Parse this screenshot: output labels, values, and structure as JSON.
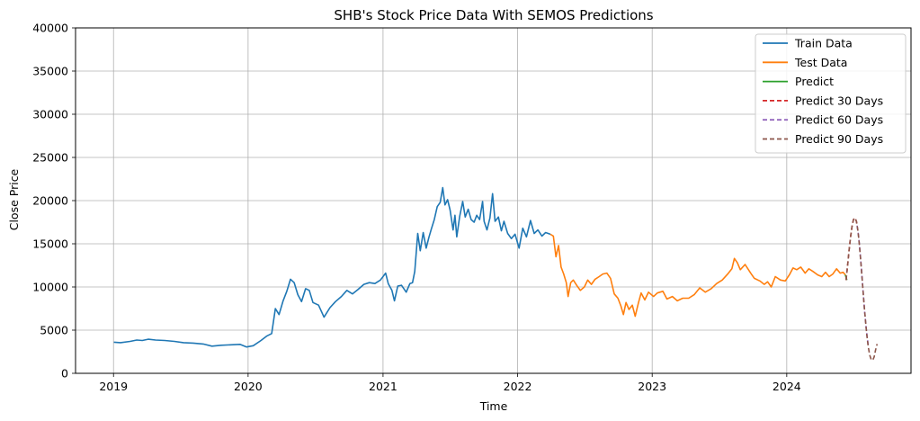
{
  "chart_data": {
    "type": "line",
    "title": "SHB's Stock Price Data With SEMOS Predictions",
    "xlabel": "Time",
    "ylabel": "Close Price",
    "xlim": [
      "2018-09-20",
      "2024-12-03"
    ],
    "ylim": [
      0,
      40000
    ],
    "x_ticks": [
      "2019",
      "2020",
      "2021",
      "2022",
      "2023",
      "2024"
    ],
    "y_ticks": [
      0,
      5000,
      10000,
      15000,
      20000,
      25000,
      30000,
      35000,
      40000
    ],
    "grid": true,
    "legend_position": "top-right",
    "series": [
      {
        "name": "Train Data",
        "color": "#1f77b4",
        "style": "solid",
        "points": [
          [
            "2019-01-02",
            3600
          ],
          [
            "2019-01-20",
            3550
          ],
          [
            "2019-02-15",
            3700
          ],
          [
            "2019-03-05",
            3850
          ],
          [
            "2019-03-20",
            3800
          ],
          [
            "2019-04-05",
            3950
          ],
          [
            "2019-04-25",
            3850
          ],
          [
            "2019-05-20",
            3800
          ],
          [
            "2019-06-15",
            3700
          ],
          [
            "2019-07-10",
            3550
          ],
          [
            "2019-08-05",
            3500
          ],
          [
            "2019-09-01",
            3400
          ],
          [
            "2019-09-25",
            3150
          ],
          [
            "2019-10-20",
            3250
          ],
          [
            "2019-11-15",
            3300
          ],
          [
            "2019-12-10",
            3350
          ],
          [
            "2019-12-28",
            3050
          ],
          [
            "2020-01-15",
            3200
          ],
          [
            "2020-02-05",
            3800
          ],
          [
            "2020-02-20",
            4300
          ],
          [
            "2020-03-05",
            4600
          ],
          [
            "2020-03-15",
            7500
          ],
          [
            "2020-03-25",
            6800
          ],
          [
            "2020-04-05",
            8400
          ],
          [
            "2020-04-15",
            9500
          ],
          [
            "2020-04-25",
            10900
          ],
          [
            "2020-05-05",
            10500
          ],
          [
            "2020-05-15",
            9100
          ],
          [
            "2020-05-25",
            8300
          ],
          [
            "2020-06-05",
            9800
          ],
          [
            "2020-06-15",
            9600
          ],
          [
            "2020-06-25",
            8200
          ],
          [
            "2020-07-10",
            7900
          ],
          [
            "2020-07-25",
            6500
          ],
          [
            "2020-08-10",
            7600
          ],
          [
            "2020-08-25",
            8300
          ],
          [
            "2020-09-10",
            8900
          ],
          [
            "2020-09-25",
            9600
          ],
          [
            "2020-10-10",
            9200
          ],
          [
            "2020-10-25",
            9700
          ],
          [
            "2020-11-10",
            10300
          ],
          [
            "2020-11-25",
            10500
          ],
          [
            "2020-12-10",
            10400
          ],
          [
            "2020-12-25",
            10800
          ],
          [
            "2021-01-08",
            11600
          ],
          [
            "2021-01-15",
            10400
          ],
          [
            "2021-01-25",
            9600
          ],
          [
            "2021-02-01",
            8400
          ],
          [
            "2021-02-10",
            10100
          ],
          [
            "2021-02-20",
            10200
          ],
          [
            "2021-03-05",
            9400
          ],
          [
            "2021-03-15",
            10400
          ],
          [
            "2021-03-22",
            10500
          ],
          [
            "2021-03-28",
            11800
          ],
          [
            "2021-04-05",
            16200
          ],
          [
            "2021-04-12",
            14200
          ],
          [
            "2021-04-20",
            16300
          ],
          [
            "2021-04-28",
            14500
          ],
          [
            "2021-05-05",
            15700
          ],
          [
            "2021-05-12",
            16700
          ],
          [
            "2021-05-20",
            17800
          ],
          [
            "2021-05-28",
            19300
          ],
          [
            "2021-06-05",
            19800
          ],
          [
            "2021-06-12",
            21500
          ],
          [
            "2021-06-18",
            19500
          ],
          [
            "2021-06-25",
            20100
          ],
          [
            "2021-07-02",
            18900
          ],
          [
            "2021-07-10",
            16600
          ],
          [
            "2021-07-15",
            18300
          ],
          [
            "2021-07-20",
            15800
          ],
          [
            "2021-07-28",
            18200
          ],
          [
            "2021-08-05",
            19900
          ],
          [
            "2021-08-12",
            18100
          ],
          [
            "2021-08-20",
            19000
          ],
          [
            "2021-08-28",
            17800
          ],
          [
            "2021-09-05",
            17500
          ],
          [
            "2021-09-12",
            18300
          ],
          [
            "2021-09-20",
            17800
          ],
          [
            "2021-09-28",
            19900
          ],
          [
            "2021-10-02",
            17600
          ],
          [
            "2021-10-10",
            16600
          ],
          [
            "2021-10-18",
            18000
          ],
          [
            "2021-10-25",
            20800
          ],
          [
            "2021-11-01",
            17600
          ],
          [
            "2021-11-10",
            18100
          ],
          [
            "2021-11-18",
            16500
          ],
          [
            "2021-11-25",
            17600
          ],
          [
            "2021-12-05",
            16200
          ],
          [
            "2021-12-15",
            15600
          ],
          [
            "2021-12-25",
            16100
          ],
          [
            "2022-01-05",
            14500
          ],
          [
            "2022-01-15",
            16800
          ],
          [
            "2022-01-25",
            15800
          ],
          [
            "2022-02-05",
            17700
          ],
          [
            "2022-02-15",
            16200
          ],
          [
            "2022-02-25",
            16600
          ],
          [
            "2022-03-08",
            15900
          ],
          [
            "2022-03-18",
            16300
          ],
          [
            "2022-03-31",
            16100
          ]
        ]
      },
      {
        "name": "Test Data",
        "color": "#ff7f0e",
        "style": "solid",
        "points": [
          [
            "2022-03-31",
            16100
          ],
          [
            "2022-04-08",
            15900
          ],
          [
            "2022-04-15",
            13500
          ],
          [
            "2022-04-22",
            14800
          ],
          [
            "2022-04-29",
            12300
          ],
          [
            "2022-05-06",
            11500
          ],
          [
            "2022-05-13",
            10500
          ],
          [
            "2022-05-18",
            8900
          ],
          [
            "2022-05-25",
            10500
          ],
          [
            "2022-06-01",
            10800
          ],
          [
            "2022-06-10",
            10200
          ],
          [
            "2022-06-20",
            9600
          ],
          [
            "2022-07-01",
            10000
          ],
          [
            "2022-07-10",
            10800
          ],
          [
            "2022-07-20",
            10300
          ],
          [
            "2022-07-30",
            10900
          ],
          [
            "2022-08-10",
            11200
          ],
          [
            "2022-08-20",
            11500
          ],
          [
            "2022-08-31",
            11600
          ],
          [
            "2022-09-10",
            11000
          ],
          [
            "2022-09-20",
            9200
          ],
          [
            "2022-09-30",
            8700
          ],
          [
            "2022-10-08",
            7800
          ],
          [
            "2022-10-15",
            6800
          ],
          [
            "2022-10-22",
            8200
          ],
          [
            "2022-10-30",
            7400
          ],
          [
            "2022-11-08",
            7900
          ],
          [
            "2022-11-16",
            6600
          ],
          [
            "2022-11-25",
            8200
          ],
          [
            "2022-12-02",
            9300
          ],
          [
            "2022-12-12",
            8500
          ],
          [
            "2022-12-22",
            9400
          ],
          [
            "2023-01-05",
            8900
          ],
          [
            "2023-01-15",
            9300
          ],
          [
            "2023-01-30",
            9500
          ],
          [
            "2023-02-10",
            8600
          ],
          [
            "2023-02-25",
            8900
          ],
          [
            "2023-03-10",
            8400
          ],
          [
            "2023-03-25",
            8700
          ],
          [
            "2023-04-10",
            8700
          ],
          [
            "2023-04-25",
            9100
          ],
          [
            "2023-05-10",
            9900
          ],
          [
            "2023-05-25",
            9400
          ],
          [
            "2023-06-10",
            9800
          ],
          [
            "2023-06-25",
            10400
          ],
          [
            "2023-07-10",
            10800
          ],
          [
            "2023-07-25",
            11500
          ],
          [
            "2023-08-05",
            12100
          ],
          [
            "2023-08-12",
            13300
          ],
          [
            "2023-08-20",
            12800
          ],
          [
            "2023-08-28",
            12000
          ],
          [
            "2023-09-10",
            12600
          ],
          [
            "2023-09-25",
            11600
          ],
          [
            "2023-10-05",
            11000
          ],
          [
            "2023-10-20",
            10700
          ],
          [
            "2023-11-01",
            10300
          ],
          [
            "2023-11-10",
            10600
          ],
          [
            "2023-11-20",
            10000
          ],
          [
            "2023-12-01",
            11200
          ],
          [
            "2023-12-15",
            10800
          ],
          [
            "2023-12-28",
            10700
          ],
          [
            "2024-01-08",
            11400
          ],
          [
            "2024-01-18",
            12200
          ],
          [
            "2024-01-28",
            12000
          ],
          [
            "2024-02-08",
            12300
          ],
          [
            "2024-02-20",
            11600
          ],
          [
            "2024-03-01",
            12100
          ],
          [
            "2024-03-12",
            11800
          ],
          [
            "2024-03-25",
            11400
          ],
          [
            "2024-04-05",
            11200
          ],
          [
            "2024-04-15",
            11700
          ],
          [
            "2024-04-25",
            11200
          ],
          [
            "2024-05-05",
            11500
          ],
          [
            "2024-05-15",
            12100
          ],
          [
            "2024-05-25",
            11600
          ],
          [
            "2024-06-02",
            11700
          ],
          [
            "2024-06-08",
            11400
          ]
        ]
      },
      {
        "name": "Predict",
        "color": "#2ca02c",
        "style": "solid",
        "points": [
          [
            "2024-06-08",
            11400
          ],
          [
            "2024-06-12",
            10800
          ]
        ]
      },
      {
        "name": "Predict 30 Days",
        "color": "#d62728",
        "style": "dashed",
        "points": [
          [
            "2024-06-10",
            10800
          ],
          [
            "2024-06-14",
            12500
          ],
          [
            "2024-06-18",
            14200
          ],
          [
            "2024-06-22",
            15800
          ],
          [
            "2024-06-26",
            17000
          ],
          [
            "2024-06-30",
            17800
          ],
          [
            "2024-07-04",
            18000
          ],
          [
            "2024-07-08",
            17600
          ],
          [
            "2024-07-10",
            17100
          ]
        ]
      },
      {
        "name": "Predict 60 Days",
        "color": "#9467bd",
        "style": "dashed",
        "points": [
          [
            "2024-07-10",
            17100
          ],
          [
            "2024-07-14",
            15800
          ],
          [
            "2024-07-18",
            14000
          ],
          [
            "2024-07-22",
            11800
          ],
          [
            "2024-07-26",
            9500
          ],
          [
            "2024-07-30",
            7300
          ],
          [
            "2024-08-03",
            5400
          ],
          [
            "2024-08-07",
            3900
          ],
          [
            "2024-08-09",
            3300
          ]
        ]
      },
      {
        "name": "Predict 90 Days",
        "color": "#8c564b",
        "style": "dashed",
        "points": [
          [
            "2024-06-10",
            10800
          ],
          [
            "2024-06-14",
            12500
          ],
          [
            "2024-06-18",
            14200
          ],
          [
            "2024-06-22",
            15800
          ],
          [
            "2024-06-26",
            17000
          ],
          [
            "2024-06-30",
            17800
          ],
          [
            "2024-07-04",
            18000
          ],
          [
            "2024-07-08",
            17600
          ],
          [
            "2024-07-12",
            16500
          ],
          [
            "2024-07-16",
            14900
          ],
          [
            "2024-07-20",
            12900
          ],
          [
            "2024-07-24",
            10600
          ],
          [
            "2024-07-28",
            8400
          ],
          [
            "2024-08-01",
            6300
          ],
          [
            "2024-08-05",
            4500
          ],
          [
            "2024-08-09",
            3100
          ],
          [
            "2024-08-13",
            2100
          ],
          [
            "2024-08-17",
            1600
          ],
          [
            "2024-08-21",
            1500
          ],
          [
            "2024-08-25",
            1900
          ],
          [
            "2024-08-29",
            2700
          ],
          [
            "2024-09-02",
            3400
          ]
        ]
      }
    ]
  }
}
